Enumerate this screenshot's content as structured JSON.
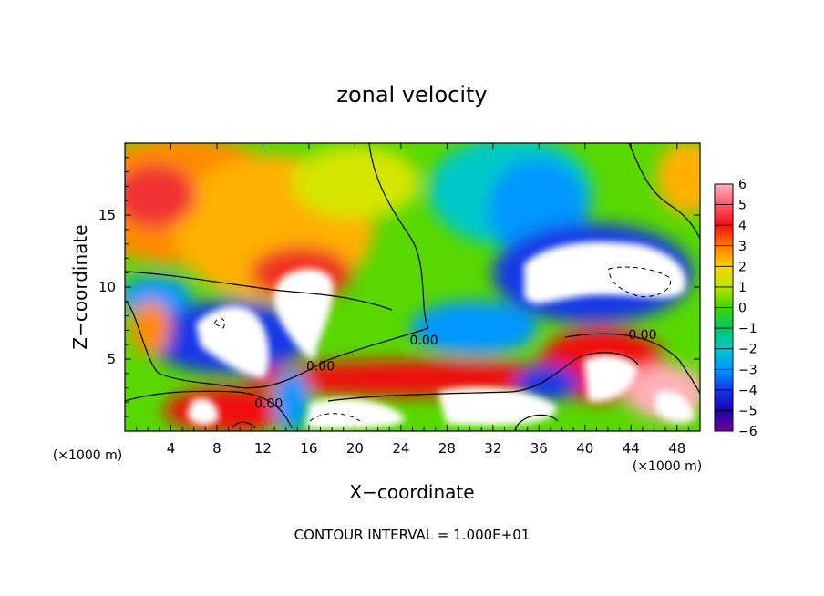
{
  "chart_data": {
    "type": "heatmap",
    "title": "zonal velocity",
    "xlabel": "X−coordinate",
    "ylabel": "Z−coordinate",
    "x_unit_label": "(×1000 m)",
    "y_unit_label": "(×1000 m)",
    "xlim": [
      0,
      50
    ],
    "ylim": [
      0,
      20
    ],
    "x_ticks": [
      4,
      8,
      12,
      16,
      20,
      24,
      28,
      32,
      36,
      40,
      44,
      48
    ],
    "y_ticks": [
      5,
      10,
      15
    ],
    "colorbar": {
      "ticks": [
        6,
        5,
        4,
        3,
        2,
        1,
        0,
        -1,
        -2,
        -3,
        -4,
        -5,
        -6
      ],
      "tick_labels": [
        "6",
        "5",
        "4",
        "3",
        "2",
        "1",
        "0",
        "−1",
        "−2",
        "−3",
        "−4",
        "−5",
        "−6"
      ],
      "range": [
        -6,
        6
      ],
      "out_of_range_color": "#ffffff"
    },
    "contour_labels": [
      {
        "text": "0.00",
        "x": 26,
        "y": 6
      },
      {
        "text": "0.00",
        "x": 45,
        "y": 6.4
      },
      {
        "text": "0.00",
        "x": 17,
        "y": 4.2
      },
      {
        "text": "0.00",
        "x": 12.5,
        "y": 1.6
      }
    ],
    "footer": "CONTOUR INTERVAL = 1.000E+01"
  }
}
